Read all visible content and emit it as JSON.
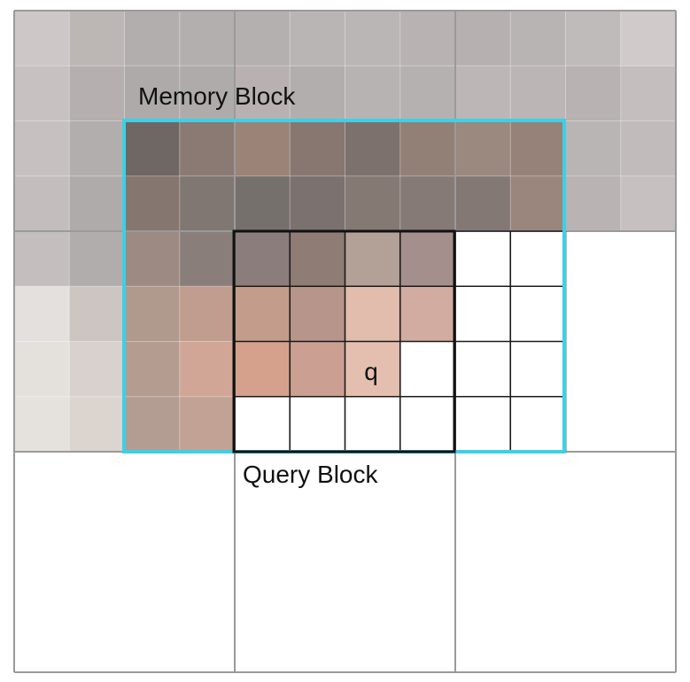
{
  "labels": {
    "memory_block": "Memory Block",
    "query_block": "Query Block",
    "query_pixel": "q"
  },
  "colors": {
    "memory_block_outline": "#3dd0e6",
    "query_block_outline": "#111111",
    "coarse_grid": "#9a9a9a",
    "fine_grid": "#ffffff",
    "cell_grid_inside_query": "#1a1a1a"
  },
  "image": {
    "cols": 12,
    "rows": 12,
    "pixel_colors": [
      [
        "#cdc8c7",
        "#bcb6b5",
        "#b2aeae",
        "#b3afaf",
        "#b5b0b0",
        "#bab5b5",
        "#bbb6b6",
        "#b8b2b2",
        "#b6b0b0",
        "#b9b4b4",
        "#c0bbbb",
        "#d0cbca"
      ],
      [
        "#c7c2c1",
        "#b5b0af",
        "#aeaaaa",
        "#afabab",
        "#b9b1b1",
        "#b3aeae",
        "#b8b3b3",
        "#b6b1b1",
        "#bdb6b6",
        "#bbb5b5",
        "#b8b2b2",
        "#c4bfbe"
      ],
      [
        "#c6c1c0",
        "#b3aeae",
        "#6f6764",
        "#8a7a73",
        "#9b8378",
        "#887770",
        "#7d716d",
        "#928077",
        "#9b887e",
        "#978279",
        "#bab5b5",
        "#c1bcbb"
      ],
      [
        "#c3bebd",
        "#b0abab",
        "#857670",
        "#807772",
        "#76706d",
        "#7b726f",
        "#857974",
        "#857a76",
        "#837874",
        "#9a867c",
        "#b9b3b3",
        "#c6c1c0"
      ],
      [
        "#c4bfbe",
        "#b2adad",
        "#9d8a82",
        "#8a7e7a",
        "#8a7d7b",
        "#8e7c75",
        "#b3a096",
        "#a48f8c",
        "#ffffff",
        "#ffffff",
        "#ffffff",
        "#ffffff"
      ],
      [
        "#e3e0dd",
        "#cdc5c2",
        "#b09a8e",
        "#c09d8e",
        "#c39c8b",
        "#b8958a",
        "#e2bcac",
        "#d3aca1",
        "#ffffff",
        "#ffffff",
        "#ffffff",
        "#ffffff"
      ],
      [
        "#e4e1dd",
        "#d9d1cd",
        "#b49c91",
        "#d1a696",
        "#d5a18d",
        "#cb9f92",
        "#e4bfb0",
        "#ffffff",
        "#ffffff",
        "#ffffff",
        "#ffffff",
        "#ffffff"
      ],
      [
        "#e5e2de",
        "#dcd4cf",
        "#b39d92",
        "#c2a294",
        "#ffffff",
        "#ffffff",
        "#ffffff",
        "#ffffff",
        "#ffffff",
        "#ffffff",
        "#ffffff",
        "#ffffff"
      ],
      [
        "#ffffff",
        "#ffffff",
        "#ffffff",
        "#ffffff",
        "#ffffff",
        "#ffffff",
        "#ffffff",
        "#ffffff",
        "#ffffff",
        "#ffffff",
        "#ffffff",
        "#ffffff"
      ],
      [
        "#ffffff",
        "#ffffff",
        "#ffffff",
        "#ffffff",
        "#ffffff",
        "#ffffff",
        "#ffffff",
        "#ffffff",
        "#ffffff",
        "#ffffff",
        "#ffffff",
        "#ffffff"
      ],
      [
        "#ffffff",
        "#ffffff",
        "#ffffff",
        "#ffffff",
        "#ffffff",
        "#ffffff",
        "#ffffff",
        "#ffffff",
        "#ffffff",
        "#ffffff",
        "#ffffff",
        "#ffffff"
      ],
      [
        "#ffffff",
        "#ffffff",
        "#ffffff",
        "#ffffff",
        "#ffffff",
        "#ffffff",
        "#ffffff",
        "#ffffff",
        "#ffffff",
        "#ffffff",
        "#ffffff",
        "#ffffff"
      ]
    ]
  }
}
